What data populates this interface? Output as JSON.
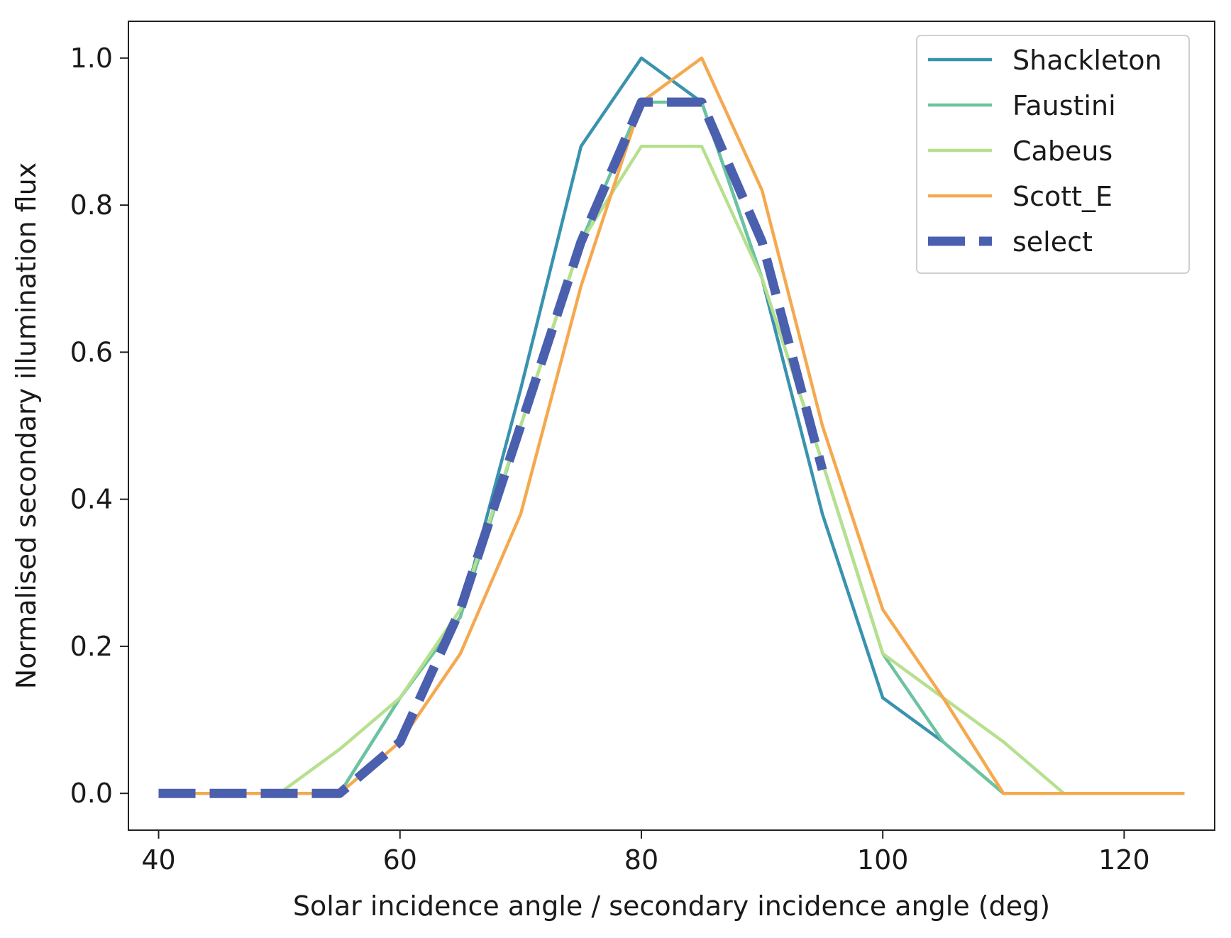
{
  "chart_data": {
    "type": "line",
    "title": "",
    "xlabel": "Solar incidence angle / secondary incidence angle (deg)",
    "ylabel": "Normalised secondary illumination flux",
    "xlim": [
      37.5,
      127.5
    ],
    "ylim": [
      -0.05,
      1.05
    ],
    "x_ticks": [
      40,
      60,
      80,
      100,
      120
    ],
    "x_tick_labels": [
      "40",
      "60",
      "80",
      "100",
      "120"
    ],
    "y_ticks": [
      0.0,
      0.2,
      0.4,
      0.6,
      0.8,
      1.0
    ],
    "y_tick_labels": [
      "0.0",
      "0.2",
      "0.4",
      "0.6",
      "0.8",
      "1.0"
    ],
    "grid": false,
    "legend_position": "top-right",
    "series": [
      {
        "name": "Shackleton",
        "color": "#3a93ae",
        "style": "solid",
        "x": [
          40,
          45,
          50,
          55,
          60,
          65,
          70,
          75,
          80,
          85,
          90,
          95,
          100,
          105,
          110,
          115,
          120,
          125
        ],
        "y": [
          0.0,
          0.0,
          0.0,
          0.0,
          0.13,
          0.24,
          0.55,
          0.88,
          1.0,
          0.94,
          0.7,
          0.38,
          0.13,
          0.07,
          0.0,
          0.0,
          0.0,
          0.0
        ]
      },
      {
        "name": "Faustini",
        "color": "#6cc3a0",
        "style": "solid",
        "x": [
          40,
          45,
          50,
          55,
          60,
          65,
          70,
          75,
          80,
          85,
          90,
          95,
          100,
          105,
          110,
          115,
          120,
          125
        ],
        "y": [
          0.0,
          0.0,
          0.0,
          0.0,
          0.13,
          0.24,
          0.5,
          0.75,
          0.94,
          0.94,
          0.7,
          0.45,
          0.19,
          0.07,
          0.0,
          0.0,
          0.0,
          0.0
        ]
      },
      {
        "name": "Cabeus",
        "color": "#b6e08e",
        "style": "solid",
        "x": [
          40,
          45,
          50,
          55,
          60,
          65,
          70,
          75,
          80,
          85,
          90,
          95,
          100,
          105,
          110,
          115,
          120,
          125
        ],
        "y": [
          0.0,
          0.0,
          0.0,
          0.06,
          0.13,
          0.25,
          0.5,
          0.75,
          0.88,
          0.88,
          0.7,
          0.45,
          0.19,
          0.13,
          0.07,
          0.0,
          0.0,
          0.0
        ]
      },
      {
        "name": "Scott_E",
        "color": "#f5a94f",
        "style": "solid",
        "x": [
          40,
          45,
          50,
          55,
          60,
          65,
          70,
          75,
          80,
          85,
          90,
          95,
          100,
          105,
          110,
          115,
          120,
          125
        ],
        "y": [
          0.0,
          0.0,
          0.0,
          0.0,
          0.07,
          0.19,
          0.38,
          0.69,
          0.94,
          1.0,
          0.82,
          0.5,
          0.25,
          0.13,
          0.0,
          0.0,
          0.0,
          0.0
        ]
      },
      {
        "name": "select",
        "color": "#4a5fad",
        "style": "dashed",
        "x": [
          40,
          45,
          50,
          55,
          60,
          65,
          70,
          75,
          80,
          85,
          90,
          95
        ],
        "y": [
          0.0,
          0.0,
          0.0,
          0.0,
          0.07,
          0.25,
          0.5,
          0.75,
          0.94,
          0.94,
          0.75,
          0.44
        ]
      }
    ]
  }
}
